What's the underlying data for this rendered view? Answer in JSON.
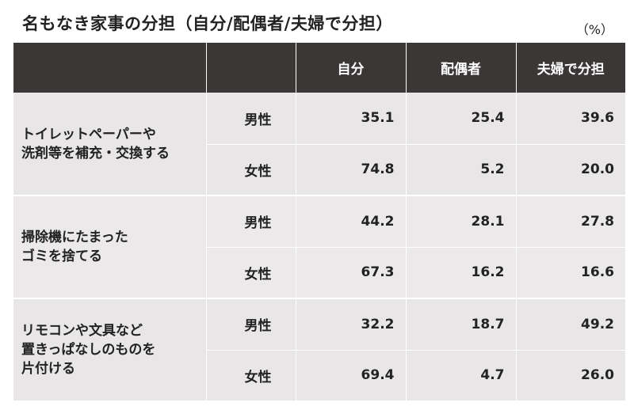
{
  "title": "名もなき家事の分担（自分/配偶者/夫婦で分担）",
  "unit": "（%）",
  "headers": [
    "",
    "",
    "自分",
    "配偶者",
    "夫婦で分担"
  ],
  "tasks": [
    {
      "lines": [
        "トイレットペーパーや",
        "洗剤等を補充・交換する"
      ],
      "rows": [
        {
          "gender": "男性",
          "self": "35.1",
          "spouse": "25.4",
          "shared": "39.6"
        },
        {
          "gender": "女性",
          "self": "74.8",
          "spouse": "5.2",
          "shared": "20.0"
        }
      ]
    },
    {
      "lines": [
        "掃除機にたまった",
        "ゴミを捨てる"
      ],
      "rows": [
        {
          "gender": "男性",
          "self": "44.2",
          "spouse": "28.1",
          "shared": "27.8"
        },
        {
          "gender": "女性",
          "self": "67.3",
          "spouse": "16.2",
          "shared": "16.6"
        }
      ]
    },
    {
      "lines": [
        "リモコンや文具など",
        "置きっぱなしのものを",
        "片付ける"
      ],
      "rows": [
        {
          "gender": "男性",
          "self": "32.2",
          "spouse": "18.7",
          "shared": "49.2"
        },
        {
          "gender": "女性",
          "self": "69.4",
          "spouse": "4.7",
          "shared": "26.0"
        }
      ]
    }
  ]
}
